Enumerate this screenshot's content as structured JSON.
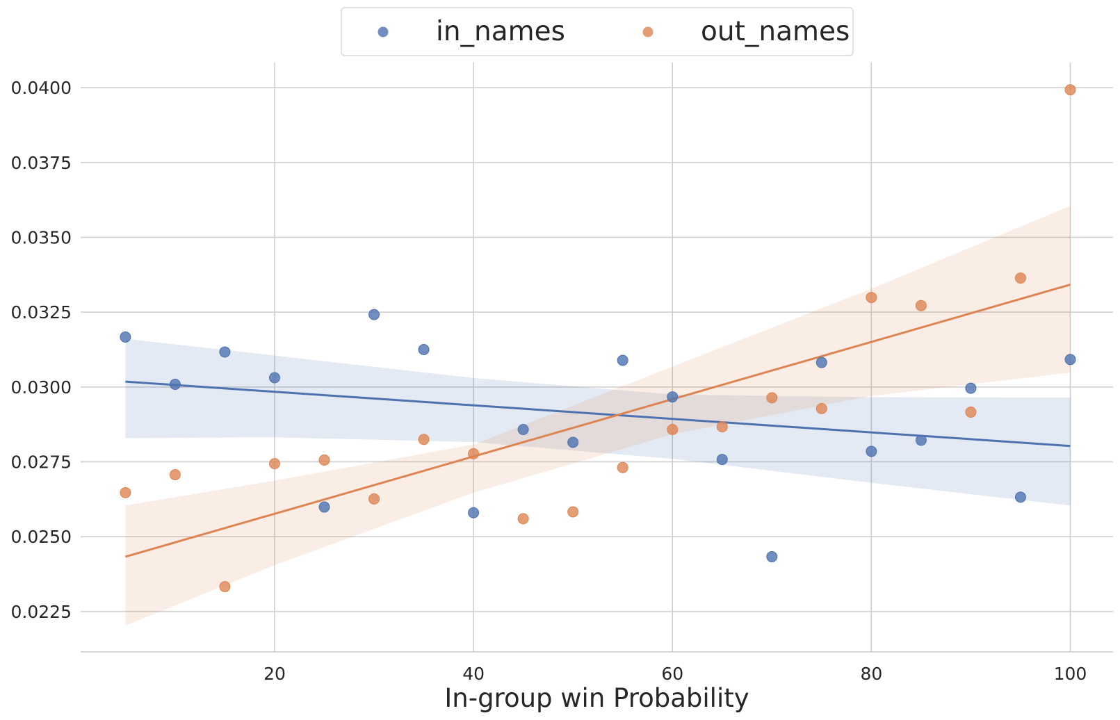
{
  "chart_data": {
    "type": "scatter",
    "xlabel": "In-group win Probability",
    "ylabel": "",
    "xlim": [
      0.5,
      104.3
    ],
    "ylim": [
      0.02115,
      0.04084
    ],
    "x_ticks": [
      20,
      40,
      60,
      80,
      100
    ],
    "x_tick_labels": [
      "20",
      "40",
      "60",
      "80",
      "100"
    ],
    "y_ticks": [
      0.0225,
      0.025,
      0.0275,
      0.03,
      0.0325,
      0.035,
      0.0375,
      0.04
    ],
    "y_tick_labels": [
      "0.0225",
      "0.0250",
      "0.0275",
      "0.0300",
      "0.0325",
      "0.0350",
      "0.0375",
      "0.0400"
    ],
    "grid": true,
    "legend_position": "top-center",
    "series": [
      {
        "name": "in_names",
        "color": "#4c72b0",
        "x": [
          5,
          10,
          15,
          20,
          25,
          30,
          35,
          40,
          45,
          50,
          55,
          60,
          65,
          70,
          75,
          80,
          85,
          90,
          95,
          100
        ],
        "y": [
          0.03167,
          0.03009,
          0.03117,
          0.03031,
          0.02599,
          0.03242,
          0.03125,
          0.0258,
          0.02858,
          0.02815,
          0.03089,
          0.02967,
          0.02758,
          0.02433,
          0.03082,
          0.02785,
          0.02822,
          0.02996,
          0.02632,
          0.03092
        ],
        "fit_line": {
          "x": [
            5,
            100
          ],
          "y": [
            0.03018,
            0.02803
          ]
        },
        "ci_upper": [
          [
            5,
            0.03161
          ],
          [
            20,
            0.03105
          ],
          [
            40,
            0.0303
          ],
          [
            60,
            0.02975
          ],
          [
            80,
            0.02966
          ],
          [
            100,
            0.02965
          ]
        ],
        "ci_lower": [
          [
            5,
            0.02829
          ],
          [
            20,
            0.02832
          ],
          [
            40,
            0.02816
          ],
          [
            60,
            0.0276
          ],
          [
            80,
            0.0268
          ],
          [
            100,
            0.02604
          ]
        ]
      },
      {
        "name": "out_names",
        "color": "#dd8452",
        "x": [
          5,
          10,
          15,
          20,
          25,
          30,
          35,
          40,
          45,
          50,
          55,
          60,
          65,
          70,
          75,
          80,
          85,
          90,
          95,
          100
        ],
        "y": [
          0.02647,
          0.02707,
          0.02333,
          0.02744,
          0.02756,
          0.02626,
          0.02825,
          0.02777,
          0.0256,
          0.02583,
          0.02731,
          0.02858,
          0.02867,
          0.02964,
          0.02928,
          0.03299,
          0.03272,
          0.02916,
          0.03364,
          0.03993
        ],
        "fit_line": {
          "x": [
            5,
            100
          ],
          "y": [
            0.02433,
            0.03342
          ]
        },
        "ci_upper": [
          [
            5,
            0.02604
          ],
          [
            20,
            0.02687
          ],
          [
            40,
            0.02808
          ],
          [
            60,
            0.03068
          ],
          [
            80,
            0.03328
          ],
          [
            100,
            0.03605
          ]
        ],
        "ci_lower": [
          [
            5,
            0.02203
          ],
          [
            20,
            0.02405
          ],
          [
            40,
            0.02647
          ],
          [
            60,
            0.02842
          ],
          [
            80,
            0.0297
          ],
          [
            100,
            0.03048
          ]
        ]
      }
    ]
  }
}
